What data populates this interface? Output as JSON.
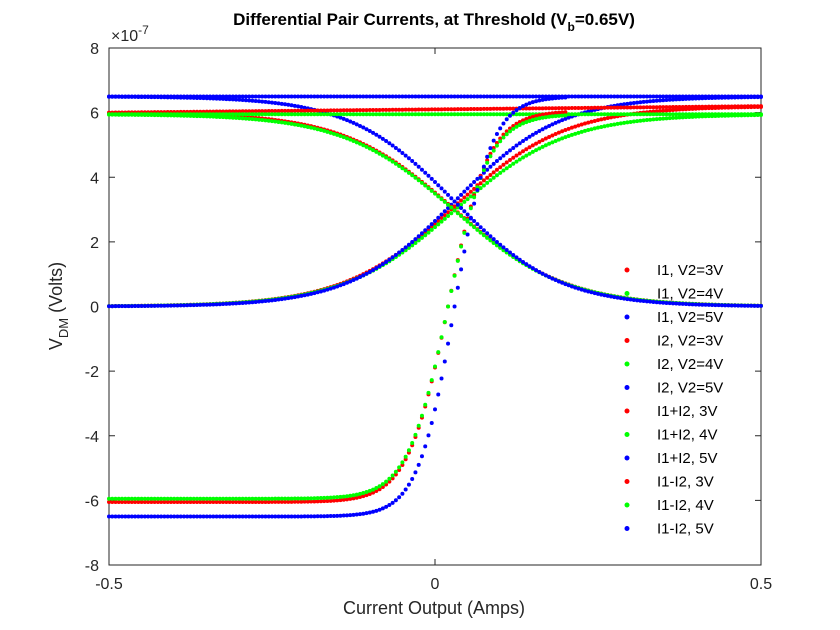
{
  "chart_data": {
    "type": "scatter",
    "title": {
      "prefix": "Differential Pair Currents, at Threshold (V",
      "sub": "b",
      "suffix": "=0.65V)"
    },
    "xlabel": "Current Output (Amps)",
    "ylabel": {
      "main": "V",
      "sub": "DM",
      "suffix": " (Volts)"
    },
    "exponent_label": {
      "base": "×10",
      "power": "-7"
    },
    "xlim": [
      -0.5,
      0.5
    ],
    "ylim": [
      -8,
      8
    ],
    "y_scale_factor": 1e-07,
    "xticks": [
      {
        "value": -0.5,
        "label": "-0.5"
      },
      {
        "value": 0,
        "label": "0"
      },
      {
        "value": 0.5,
        "label": "0.5"
      }
    ],
    "yticks": [
      {
        "value": -8,
        "label": "-8"
      },
      {
        "value": -6,
        "label": "-6"
      },
      {
        "value": -4,
        "label": "-4"
      },
      {
        "value": -2,
        "label": "-2"
      },
      {
        "value": 0,
        "label": "0"
      },
      {
        "value": 2,
        "label": "2"
      },
      {
        "value": 4,
        "label": "4"
      },
      {
        "value": 6,
        "label": "6"
      },
      {
        "value": 8,
        "label": "8"
      }
    ],
    "grid": false,
    "legend_position": "right-center",
    "colors": {
      "3V": "#ff0000",
      "4V": "#00ff00",
      "5V": "#0000ff"
    },
    "series": [
      {
        "name": "I1, V2=3V",
        "color": "#ff0000",
        "kind": "I1",
        "Imax": 6.2,
        "center": 0.03,
        "width": 0.085,
        "x_start": -0.5,
        "x_end": 0.5,
        "step": 0.005
      },
      {
        "name": "I1, V2=4V",
        "color": "#00ff00",
        "kind": "I1",
        "Imax": 5.95,
        "center": 0.03,
        "width": 0.085,
        "x_start": -0.5,
        "x_end": 0.5,
        "step": 0.005
      },
      {
        "name": "I1, V2=5V",
        "color": "#0000ff",
        "kind": "I1",
        "Imax": 6.5,
        "center": 0.03,
        "width": 0.08,
        "x_start": -0.5,
        "x_end": 0.5,
        "step": 0.005
      },
      {
        "name": "I2, V2=3V",
        "color": "#ff0000",
        "kind": "I2",
        "Imax": 6.0,
        "center": 0.03,
        "width": 0.085,
        "x_start": -0.5,
        "x_end": 0.5,
        "step": 0.005
      },
      {
        "name": "I2, V2=4V",
        "color": "#00ff00",
        "kind": "I2",
        "Imax": 5.95,
        "center": 0.03,
        "width": 0.085,
        "x_start": -0.5,
        "x_end": 0.5,
        "step": 0.005
      },
      {
        "name": "I2, V2=5V",
        "color": "#0000ff",
        "kind": "I2",
        "Imax": 6.5,
        "center": 0.03,
        "width": 0.08,
        "x_start": -0.5,
        "x_end": 0.5,
        "step": 0.005
      },
      {
        "name": "I1+I2, 3V",
        "color": "#ff0000",
        "kind": "sum",
        "ystart": 6.0,
        "yend": 6.2,
        "x_start": -0.5,
        "x_end": 0.5,
        "step": 0.005
      },
      {
        "name": "I1+I2, 4V",
        "color": "#00ff00",
        "kind": "sum",
        "ystart": 5.95,
        "yend": 5.95,
        "x_start": -0.5,
        "x_end": 0.5,
        "step": 0.005
      },
      {
        "name": "I1+I2, 5V",
        "color": "#0000ff",
        "kind": "sum",
        "ystart": 6.5,
        "yend": 6.5,
        "x_start": -0.5,
        "x_end": 0.5,
        "step": 0.005
      },
      {
        "name": "I1-I2, 3V",
        "color": "#ff0000",
        "kind": "diff",
        "Imax": 6.05,
        "center": 0.02,
        "width": 0.062,
        "x_start": -0.5,
        "x_end": 0.2,
        "step": 0.005
      },
      {
        "name": "I1-I2, 4V",
        "color": "#00ff00",
        "kind": "diff",
        "Imax": 5.95,
        "center": 0.02,
        "width": 0.062,
        "x_start": -0.5,
        "x_end": 0.2,
        "step": 0.005
      },
      {
        "name": "I1-I2, 5V",
        "color": "#0000ff",
        "kind": "diff",
        "Imax": 6.5,
        "center": 0.03,
        "width": 0.056,
        "x_start": -0.5,
        "x_end": 0.2,
        "step": 0.005
      }
    ]
  }
}
